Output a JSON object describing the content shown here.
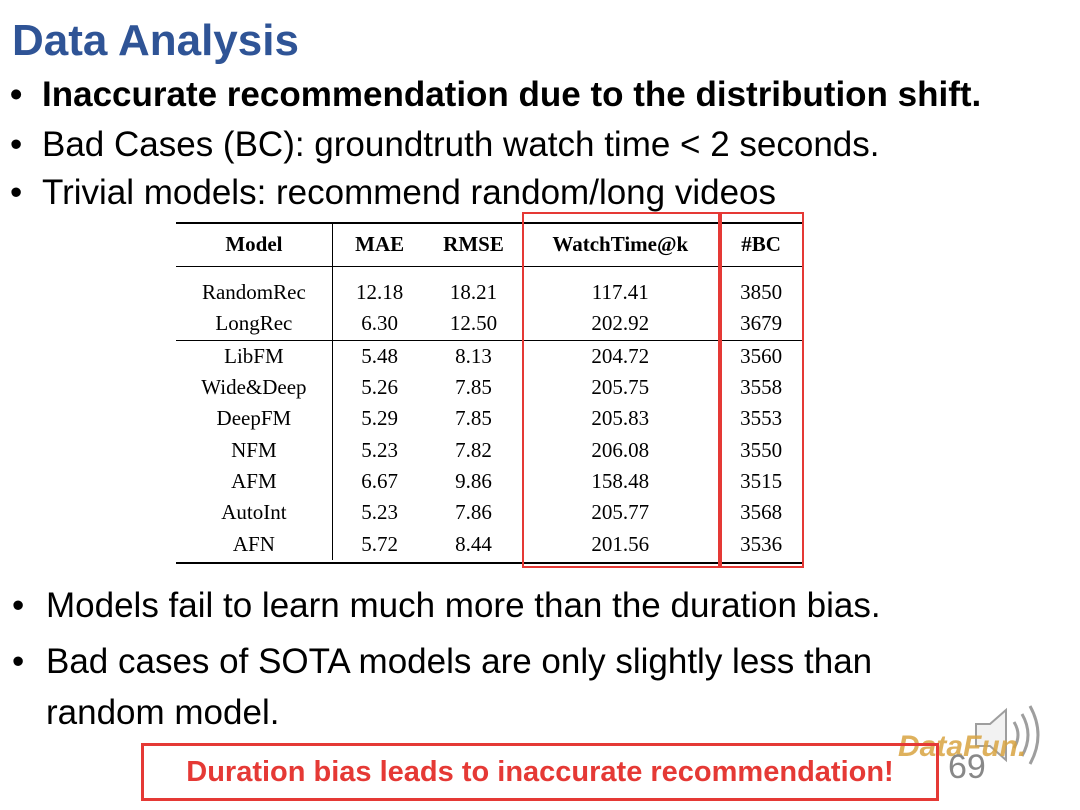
{
  "title": "Data Analysis",
  "bullets_top": [
    "Inaccurate recommendation due to the distribution shift.",
    "Bad Cases (BC): groundtruth watch time < 2 seconds.",
    "Trivial models: recommend random/long videos"
  ],
  "table": {
    "headers": [
      "Model",
      "MAE",
      "RMSE",
      "WatchTime@k",
      "#BC"
    ],
    "rows": [
      [
        "RandomRec",
        "12.18",
        "18.21",
        "117.41",
        "3850"
      ],
      [
        "LongRec",
        "6.30",
        "12.50",
        "202.92",
        "3679"
      ],
      [
        "LibFM",
        "5.48",
        "8.13",
        "204.72",
        "3560"
      ],
      [
        "Wide&Deep",
        "5.26",
        "7.85",
        "205.75",
        "3558"
      ],
      [
        "DeepFM",
        "5.29",
        "7.85",
        "205.83",
        "3553"
      ],
      [
        "NFM",
        "5.23",
        "7.82",
        "206.08",
        "3550"
      ],
      [
        "AFM",
        "6.67",
        "9.86",
        "158.48",
        "3515"
      ],
      [
        "AutoInt",
        "5.23",
        "7.86",
        "205.77",
        "3568"
      ],
      [
        "AFN",
        "5.72",
        "8.44",
        "201.56",
        "3536"
      ]
    ]
  },
  "bullets_bottom": [
    "Models fail to learn much more than the duration bias.",
    "Bad cases of SOTA models are only slightly less than random model."
  ],
  "banner": "Duration bias leads to inaccurate recommendation!",
  "page_number": "69",
  "logo_text": "DataFun.",
  "colors": {
    "title": "#2f5496",
    "highlight": "#e53935"
  }
}
